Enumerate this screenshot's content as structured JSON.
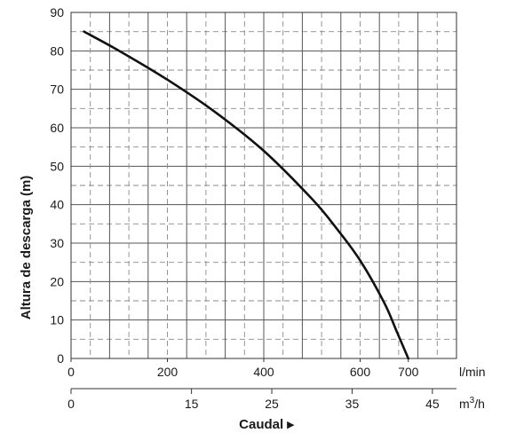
{
  "chart_data": {
    "type": "line",
    "title": "",
    "xlabel": "Caudal ▸",
    "ylabel": "Altura de descarga (m)",
    "x_unit_primary": "l/min",
    "x_unit_secondary_base": "m",
    "x_unit_secondary_sup": "3",
    "x_unit_secondary_tail": "/h",
    "ylim": [
      0,
      90
    ],
    "xlim": [
      0,
      800
    ],
    "grid": true,
    "y_ticks": [
      "0",
      "10",
      "20",
      "30",
      "40",
      "50",
      "60",
      "70",
      "80",
      "90"
    ],
    "x_ticks_primary": [
      {
        "value": 0,
        "label": "0"
      },
      {
        "value": 200,
        "label": "200"
      },
      {
        "value": 400,
        "label": "400"
      },
      {
        "value": 600,
        "label": "600"
      },
      {
        "value": 700,
        "label": "700"
      }
    ],
    "x_ticks_secondary": [
      {
        "value": 0,
        "label": "0"
      },
      {
        "value": 15,
        "label": "15"
      },
      {
        "value": 25,
        "label": "25"
      },
      {
        "value": 35,
        "label": "35"
      },
      {
        "value": 45,
        "label": "45"
      }
    ],
    "series": [
      {
        "color": "#111111",
        "points": [
          [
            27,
            85
          ],
          [
            100,
            80
          ],
          [
            200,
            72.5
          ],
          [
            300,
            64
          ],
          [
            400,
            54
          ],
          [
            500,
            41.5
          ],
          [
            550,
            34
          ],
          [
            600,
            25.5
          ],
          [
            650,
            14.5
          ],
          [
            676,
            7
          ],
          [
            700,
            0
          ]
        ]
      }
    ]
  }
}
